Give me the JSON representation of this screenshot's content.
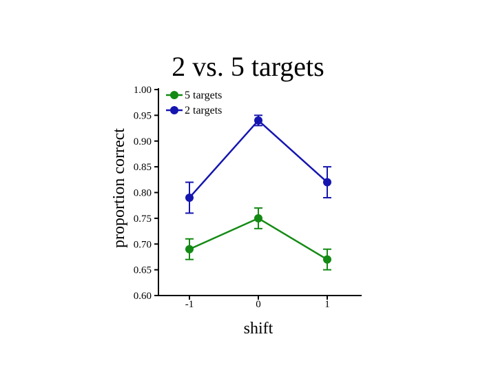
{
  "chart_data": {
    "type": "line",
    "title": "2 vs. 5 targets",
    "xlabel": "shift",
    "ylabel": "proportion correct",
    "x": [
      -1,
      0,
      1
    ],
    "x_tick_labels": [
      "-1",
      "0",
      "1"
    ],
    "ylim": [
      0.6,
      1.0
    ],
    "y_tick_labels": [
      "0.60",
      "0.65",
      "0.70",
      "0.75",
      "0.80",
      "0.85",
      "0.90",
      "0.95",
      "1.00"
    ],
    "grid": false,
    "legend_position": "top-left",
    "series": [
      {
        "name": "5 targets",
        "color": "#138a13",
        "values": [
          0.69,
          0.75,
          0.67
        ],
        "error": [
          0.02,
          0.02,
          0.02
        ]
      },
      {
        "name": "2 targets",
        "color": "#1515b0",
        "values": [
          0.79,
          0.94,
          0.82
        ],
        "error": [
          0.03,
          0.01,
          0.03
        ]
      }
    ]
  }
}
